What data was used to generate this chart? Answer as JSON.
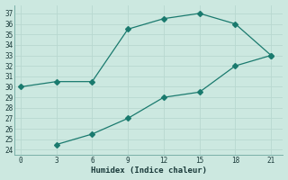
{
  "line1_x": [
    0,
    3,
    6,
    9,
    12,
    15,
    18,
    21
  ],
  "line1_y": [
    30,
    30.5,
    30.5,
    35.5,
    36.5,
    37,
    36,
    33
  ],
  "line2_x": [
    3,
    6,
    9,
    12,
    15,
    18,
    21
  ],
  "line2_y": [
    24.5,
    25.5,
    27.0,
    29.0,
    29.5,
    32.0,
    33
  ],
  "line_color": "#1a7a6e",
  "bg_color": "#cce8e0",
  "grid_color_major": "#b8d8d0",
  "grid_color_minor": "#daf0ea",
  "xlabel": "Humidex (Indice chaleur)",
  "xlim": [
    -0.5,
    22
  ],
  "ylim": [
    23.5,
    37.8
  ],
  "xticks": [
    0,
    3,
    6,
    9,
    12,
    15,
    18,
    21
  ],
  "yticks": [
    24,
    25,
    26,
    27,
    28,
    29,
    30,
    31,
    32,
    33,
    34,
    35,
    36,
    37
  ],
  "marker": "D",
  "marker_size": 3,
  "line_width": 0.9
}
